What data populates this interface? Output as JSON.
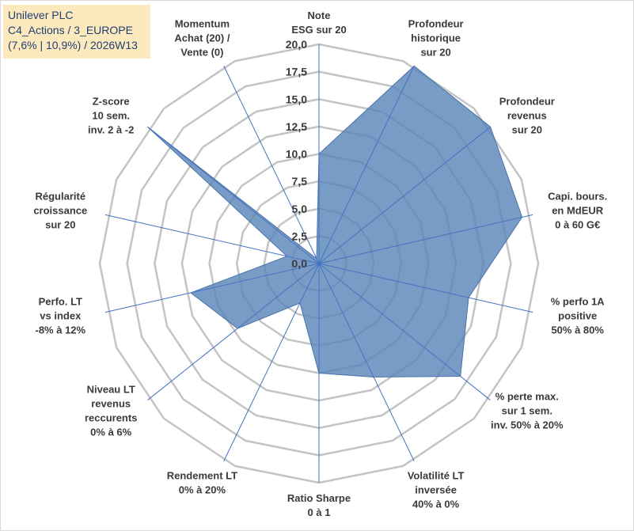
{
  "title": {
    "line1": "Unilever PLC",
    "line2": "C4_Actions / 3_EUROPE",
    "line3": "(7,6% | 10,9%) / 2026W13"
  },
  "chart_data": {
    "type": "radar",
    "title": "Unilever PLC C4_Actions / 3_EUROPE (7,6% | 10,9%) / 2026W13",
    "rmin": 0,
    "rmax": 20,
    "ticks": [
      "0,0",
      "2,5",
      "5,0",
      "7,5",
      "10,0",
      "12,5",
      "15,0",
      "17,5",
      "20,0"
    ],
    "grid": "concentric 16-sided polygons, step 2.5",
    "colors": {
      "fill": "#5b86b9",
      "edge": "#4a74a8",
      "grid": "#c4c4c4",
      "axis": "#4472c4"
    },
    "axes": [
      {
        "label": [
          "Note",
          "ESG sur 20"
        ],
        "value": 10.0
      },
      {
        "label": [
          "Profondeur",
          "historique",
          "sur 20"
        ],
        "value": 20.0
      },
      {
        "label": [
          "Profondeur",
          "revenus",
          "sur 20"
        ],
        "value": 20.0
      },
      {
        "label": [
          "Capi. bours.",
          "en MdEUR",
          "0 à 60 G€"
        ],
        "value": 19.0
      },
      {
        "label": [
          "% perfo 1A",
          "positive",
          "50% à 80%"
        ],
        "value": 14.0
      },
      {
        "label": [
          "% perte max.",
          "sur 1 sem.",
          "inv. 50% à 20%"
        ],
        "value": 16.5
      },
      {
        "label": [
          "Volatilité LT",
          "inversée",
          "40% à 0%"
        ],
        "value": 11.5
      },
      {
        "label": [
          "Ratio Sharpe",
          "0 à 1"
        ],
        "value": 10.0
      },
      {
        "label": [
          "Rendement LT",
          "0% à 20%"
        ],
        "value": 4.0
      },
      {
        "label": [
          "Niveau LT",
          "revenus",
          "reccurents",
          "0% à 6%"
        ],
        "value": 9.5
      },
      {
        "label": [
          "Perfo. LT",
          "vs index",
          "-8% à 12%"
        ],
        "value": 12.0
      },
      {
        "label": [
          "Régularité",
          "croissance",
          "sur 20"
        ],
        "value": 3.0
      },
      {
        "label": [
          "Z-score",
          "10 sem.",
          "inv. 2 à -2"
        ],
        "value": 20.0
      },
      {
        "label": [
          "Momentum",
          "Achat (20) /",
          "Vente (0)"
        ],
        "value": 0.5
      }
    ]
  }
}
